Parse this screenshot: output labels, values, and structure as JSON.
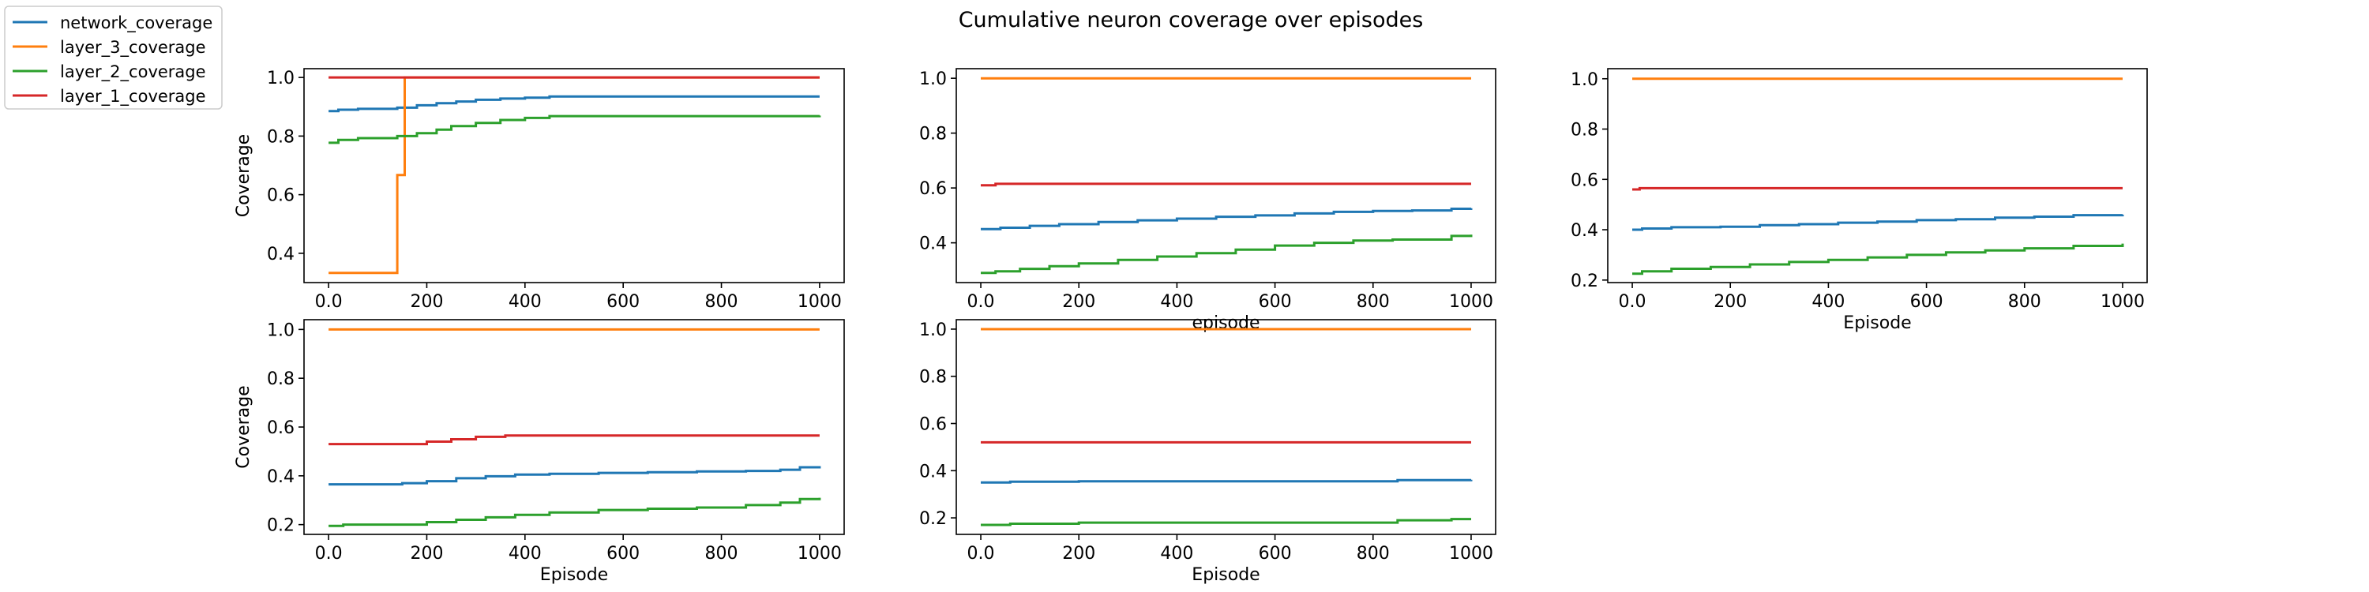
{
  "figure": {
    "title": "Cumulative neuron coverage over episodes",
    "legend": {
      "placement": "outside-top-left",
      "entries": [
        {
          "label": "network_coverage",
          "color": "#1f77b4"
        },
        {
          "label": "layer_3_coverage",
          "color": "#ff7f0e"
        },
        {
          "label": "layer_2_coverage",
          "color": "#2ca02c"
        },
        {
          "label": "layer_1_coverage",
          "color": "#d62728"
        }
      ]
    }
  },
  "chart_data": [
    {
      "type": "line",
      "panel": "top-left",
      "xlabel": "",
      "ylabel": "Coverage",
      "xlim": [
        -50,
        1050
      ],
      "ylim": [
        0.3,
        1.03
      ],
      "xticks": [
        0,
        200,
        400,
        600,
        800,
        1000
      ],
      "yticks": [
        0.4,
        0.6,
        0.8,
        1.0
      ],
      "series": [
        {
          "name": "network_coverage",
          "color": "#1f77b4",
          "step": true,
          "x": [
            0,
            20,
            60,
            140,
            180,
            220,
            260,
            300,
            350,
            400,
            450,
            1000
          ],
          "y": [
            0.885,
            0.89,
            0.893,
            0.897,
            0.905,
            0.912,
            0.918,
            0.924,
            0.928,
            0.931,
            0.935,
            0.935
          ]
        },
        {
          "name": "layer_3_coverage",
          "color": "#ff7f0e",
          "step": true,
          "x": [
            0,
            140,
            155,
            1000
          ],
          "y": [
            0.333,
            0.667,
            1.0,
            1.0
          ]
        },
        {
          "name": "layer_2_coverage",
          "color": "#2ca02c",
          "step": true,
          "x": [
            0,
            20,
            60,
            140,
            180,
            220,
            250,
            300,
            350,
            400,
            450,
            1000
          ],
          "y": [
            0.777,
            0.787,
            0.793,
            0.8,
            0.81,
            0.822,
            0.834,
            0.845,
            0.855,
            0.862,
            0.868,
            0.87
          ]
        },
        {
          "name": "layer_1_coverage",
          "color": "#d62728",
          "step": true,
          "x": [
            0,
            1000
          ],
          "y": [
            1.0,
            1.0
          ]
        }
      ]
    },
    {
      "type": "line",
      "panel": "top-middle",
      "xlabel": "episode",
      "ylabel": "",
      "xlim": [
        -50,
        1050
      ],
      "ylim": [
        0.255,
        1.035
      ],
      "xticks": [
        0,
        200,
        400,
        600,
        800,
        1000
      ],
      "yticks": [
        0.4,
        0.6,
        0.8,
        1.0
      ],
      "series": [
        {
          "name": "network_coverage",
          "color": "#1f77b4",
          "step": true,
          "x": [
            0,
            40,
            100,
            160,
            240,
            320,
            400,
            480,
            560,
            640,
            720,
            800,
            880,
            960,
            1000
          ],
          "y": [
            0.45,
            0.455,
            0.462,
            0.468,
            0.476,
            0.482,
            0.488,
            0.495,
            0.5,
            0.507,
            0.513,
            0.516,
            0.518,
            0.524,
            0.526
          ]
        },
        {
          "name": "layer_3_coverage",
          "color": "#ff7f0e",
          "step": true,
          "x": [
            0,
            1000
          ],
          "y": [
            1.0,
            1.0
          ]
        },
        {
          "name": "layer_2_coverage",
          "color": "#2ca02c",
          "step": true,
          "x": [
            0,
            30,
            80,
            140,
            200,
            280,
            360,
            440,
            520,
            600,
            680,
            760,
            840,
            960,
            1000
          ],
          "y": [
            0.29,
            0.296,
            0.305,
            0.315,
            0.325,
            0.338,
            0.35,
            0.362,
            0.375,
            0.39,
            0.4,
            0.408,
            0.412,
            0.425,
            0.43
          ]
        },
        {
          "name": "layer_1_coverage",
          "color": "#d62728",
          "step": true,
          "x": [
            0,
            30,
            1000
          ],
          "y": [
            0.61,
            0.615,
            0.615
          ]
        }
      ]
    },
    {
      "type": "line",
      "panel": "top-right",
      "xlabel": "Episode",
      "ylabel": "",
      "xlim": [
        -50,
        1050
      ],
      "ylim": [
        0.19,
        1.04
      ],
      "xticks": [
        0,
        200,
        400,
        600,
        800,
        1000
      ],
      "yticks": [
        0.2,
        0.4,
        0.6,
        0.8,
        1.0
      ],
      "series": [
        {
          "name": "network_coverage",
          "color": "#1f77b4",
          "step": true,
          "x": [
            0,
            20,
            80,
            180,
            260,
            340,
            420,
            500,
            580,
            660,
            740,
            820,
            900,
            1000
          ],
          "y": [
            0.4,
            0.405,
            0.41,
            0.412,
            0.418,
            0.422,
            0.428,
            0.432,
            0.438,
            0.442,
            0.448,
            0.452,
            0.458,
            0.46
          ]
        },
        {
          "name": "layer_3_coverage",
          "color": "#ff7f0e",
          "step": true,
          "x": [
            0,
            1000
          ],
          "y": [
            1.0,
            1.0
          ]
        },
        {
          "name": "layer_2_coverage",
          "color": "#2ca02c",
          "step": true,
          "x": [
            0,
            20,
            80,
            160,
            240,
            320,
            400,
            480,
            560,
            640,
            720,
            800,
            900,
            1000
          ],
          "y": [
            0.225,
            0.235,
            0.245,
            0.252,
            0.262,
            0.272,
            0.28,
            0.29,
            0.3,
            0.31,
            0.318,
            0.326,
            0.336,
            0.345
          ]
        },
        {
          "name": "layer_1_coverage",
          "color": "#d62728",
          "step": true,
          "x": [
            0,
            15,
            1000
          ],
          "y": [
            0.56,
            0.565,
            0.565
          ]
        }
      ]
    },
    {
      "type": "line",
      "panel": "bottom-left",
      "xlabel": "Episode",
      "ylabel": "Coverage",
      "xlim": [
        -50,
        1050
      ],
      "ylim": [
        0.16,
        1.04
      ],
      "xticks": [
        0,
        200,
        400,
        600,
        800,
        1000
      ],
      "yticks": [
        0.2,
        0.4,
        0.6,
        0.8,
        1.0
      ],
      "series": [
        {
          "name": "network_coverage",
          "color": "#1f77b4",
          "step": true,
          "x": [
            0,
            150,
            200,
            260,
            320,
            380,
            450,
            550,
            650,
            750,
            850,
            920,
            960,
            1000
          ],
          "y": [
            0.365,
            0.37,
            0.378,
            0.39,
            0.398,
            0.405,
            0.408,
            0.412,
            0.415,
            0.418,
            0.42,
            0.425,
            0.435,
            0.44
          ]
        },
        {
          "name": "layer_3_coverage",
          "color": "#ff7f0e",
          "step": true,
          "x": [
            0,
            1000
          ],
          "y": [
            1.0,
            1.0
          ]
        },
        {
          "name": "layer_2_coverage",
          "color": "#2ca02c",
          "step": true,
          "x": [
            0,
            30,
            200,
            260,
            320,
            380,
            450,
            550,
            650,
            750,
            850,
            920,
            960,
            1000
          ],
          "y": [
            0.195,
            0.2,
            0.21,
            0.22,
            0.23,
            0.24,
            0.25,
            0.26,
            0.265,
            0.27,
            0.28,
            0.29,
            0.305,
            0.31
          ]
        },
        {
          "name": "layer_1_coverage",
          "color": "#d62728",
          "step": true,
          "x": [
            0,
            200,
            250,
            300,
            360,
            1000
          ],
          "y": [
            0.53,
            0.54,
            0.55,
            0.56,
            0.565,
            0.565
          ]
        }
      ]
    },
    {
      "type": "line",
      "panel": "bottom-middle",
      "xlabel": "Episode",
      "ylabel": "",
      "xlim": [
        -50,
        1050
      ],
      "ylim": [
        0.13,
        1.04
      ],
      "xticks": [
        0,
        200,
        400,
        600,
        800,
        1000
      ],
      "yticks": [
        0.2,
        0.4,
        0.6,
        0.8,
        1.0
      ],
      "series": [
        {
          "name": "network_coverage",
          "color": "#1f77b4",
          "step": true,
          "x": [
            0,
            60,
            200,
            850,
            1000
          ],
          "y": [
            0.35,
            0.353,
            0.355,
            0.36,
            0.362
          ]
        },
        {
          "name": "layer_3_coverage",
          "color": "#ff7f0e",
          "step": true,
          "x": [
            0,
            1000
          ],
          "y": [
            1.0,
            1.0
          ]
        },
        {
          "name": "layer_2_coverage",
          "color": "#2ca02c",
          "step": true,
          "x": [
            0,
            60,
            200,
            850,
            960,
            1000
          ],
          "y": [
            0.17,
            0.175,
            0.18,
            0.19,
            0.195,
            0.195
          ]
        },
        {
          "name": "layer_1_coverage",
          "color": "#d62728",
          "step": true,
          "x": [
            0,
            1000
          ],
          "y": [
            0.52,
            0.52
          ]
        }
      ]
    }
  ]
}
